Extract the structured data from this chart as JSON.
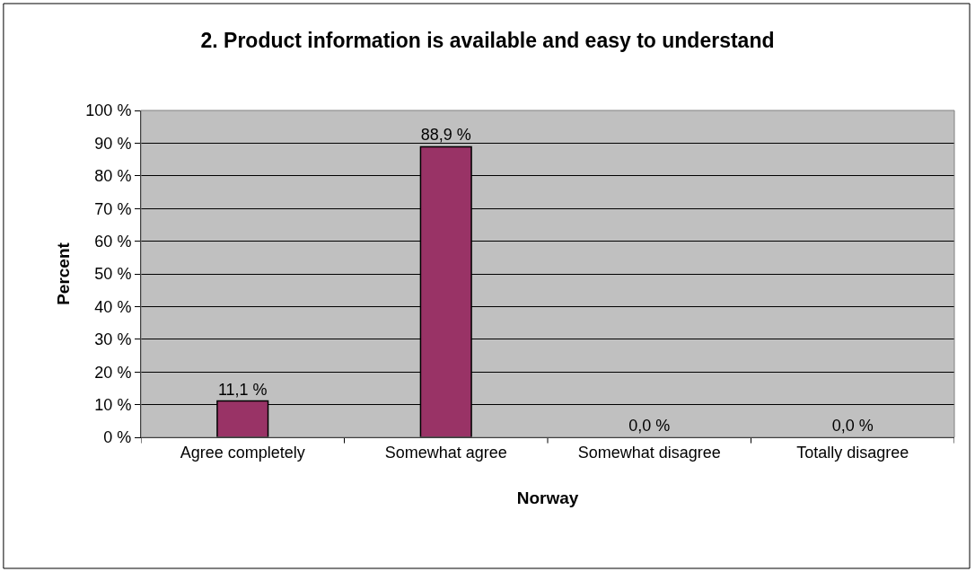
{
  "chart_data": {
    "type": "bar",
    "title": "2. Product information is available and easy to understand",
    "xlabel": "Norway",
    "ylabel": "Percent",
    "categories": [
      "Agree completely",
      "Somewhat agree",
      "Somewhat disagree",
      "Totally disagree"
    ],
    "values": [
      11.1,
      88.9,
      0.0,
      0.0
    ],
    "value_labels": [
      "11,1 %",
      "88,9 %",
      "0,0 %",
      "0,0 %"
    ],
    "color": "#993366",
    "ylim": [
      0,
      100
    ],
    "yticks": [
      {
        "value": 0,
        "label": "0 %"
      },
      {
        "value": 10,
        "label": "10 %"
      },
      {
        "value": 20,
        "label": "20 %"
      },
      {
        "value": 30,
        "label": "30 %"
      },
      {
        "value": 40,
        "label": "40 %"
      },
      {
        "value": 50,
        "label": "50 %"
      },
      {
        "value": 60,
        "label": "60 %"
      },
      {
        "value": 70,
        "label": "70 %"
      },
      {
        "value": 80,
        "label": "80 %"
      },
      {
        "value": 90,
        "label": "90 %"
      },
      {
        "value": 100,
        "label": "100 %"
      }
    ],
    "grid": "y",
    "legend": false
  }
}
